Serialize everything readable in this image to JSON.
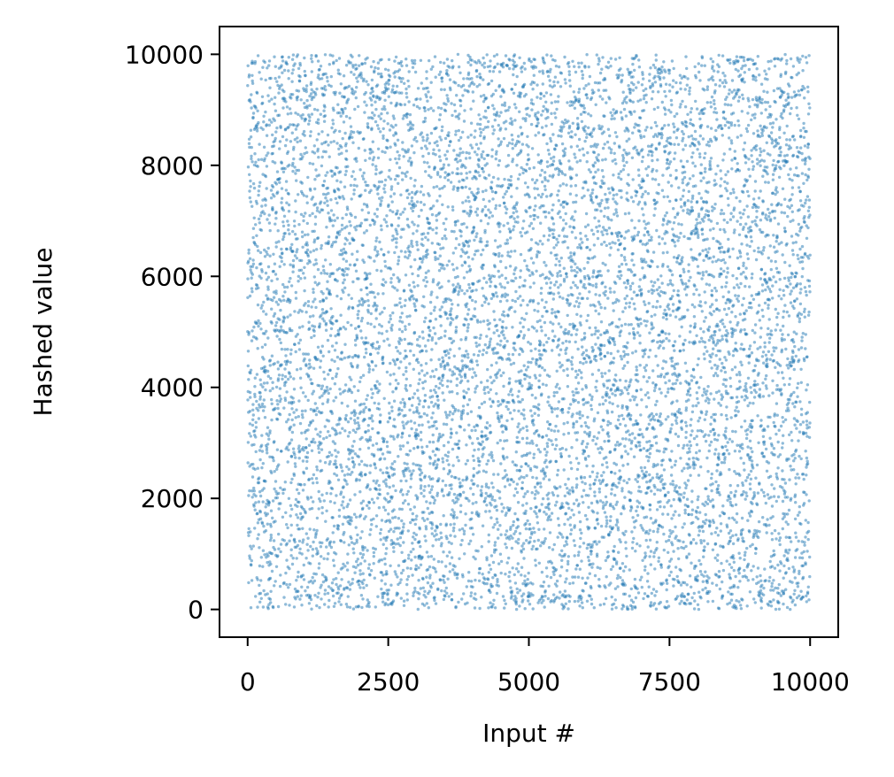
{
  "chart_data": {
    "type": "scatter",
    "title": "",
    "xlabel": "Input #",
    "ylabel": "Hashed value",
    "xlim": [
      -500,
      10500
    ],
    "ylim": [
      -500,
      10500
    ],
    "xticks": [
      0,
      2500,
      5000,
      7500,
      10000
    ],
    "xtick_labels": [
      "0",
      "2500",
      "5000",
      "7500",
      "10000"
    ],
    "yticks": [
      0,
      2000,
      4000,
      6000,
      8000,
      10000
    ],
    "ytick_labels": [
      "0",
      "2000",
      "4000",
      "6000",
      "8000",
      "10000"
    ],
    "grid": false,
    "legend": "none",
    "series": [
      {
        "color": "#1f77b4",
        "opacity": 0.5,
        "marker_size": 3,
        "x_range": [
          0,
          9999
        ],
        "y_range": [
          0,
          9999
        ],
        "n_points": 10000
      }
    ]
  }
}
